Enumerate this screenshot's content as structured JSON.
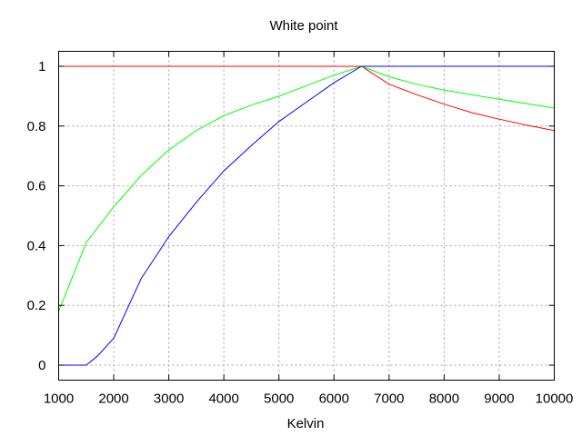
{
  "chart_data": {
    "type": "line",
    "title": "White point",
    "xlabel": "Kelvin",
    "ylabel": "",
    "xlim": [
      1000,
      10000
    ],
    "ylim": [
      -0.05,
      1.05
    ],
    "grid": true,
    "x_ticks": [
      1000,
      2000,
      3000,
      4000,
      5000,
      6000,
      7000,
      8000,
      9000,
      10000
    ],
    "y_ticks": [
      0,
      0.2,
      0.4,
      0.6,
      0.8,
      1
    ],
    "series": [
      {
        "color": "#ff0000",
        "x": [
          1000,
          6500,
          7000,
          7500,
          8000,
          8500,
          9000,
          9500,
          10000
        ],
        "y": [
          1,
          1,
          0.94,
          0.905,
          0.873,
          0.845,
          0.823,
          0.803,
          0.785
        ]
      },
      {
        "color": "#00ff00",
        "x": [
          1000,
          1500,
          2000,
          2500,
          3000,
          3500,
          4000,
          4500,
          5000,
          5500,
          6000,
          6500,
          7000,
          7500,
          8000,
          8500,
          9000,
          9500,
          10000
        ],
        "y": [
          0.18,
          0.41,
          0.53,
          0.635,
          0.72,
          0.785,
          0.835,
          0.87,
          0.9,
          0.935,
          0.97,
          1,
          0.965,
          0.94,
          0.92,
          0.905,
          0.89,
          0.875,
          0.86
        ]
      },
      {
        "color": "#0000ff",
        "x": [
          1000,
          1500,
          1700,
          2000,
          2500,
          3000,
          3500,
          4000,
          4500,
          5000,
          5500,
          6000,
          6500,
          7000,
          10000
        ],
        "y": [
          0,
          0,
          0.03,
          0.09,
          0.29,
          0.43,
          0.545,
          0.65,
          0.735,
          0.815,
          0.88,
          0.945,
          1,
          1,
          1
        ]
      }
    ]
  }
}
